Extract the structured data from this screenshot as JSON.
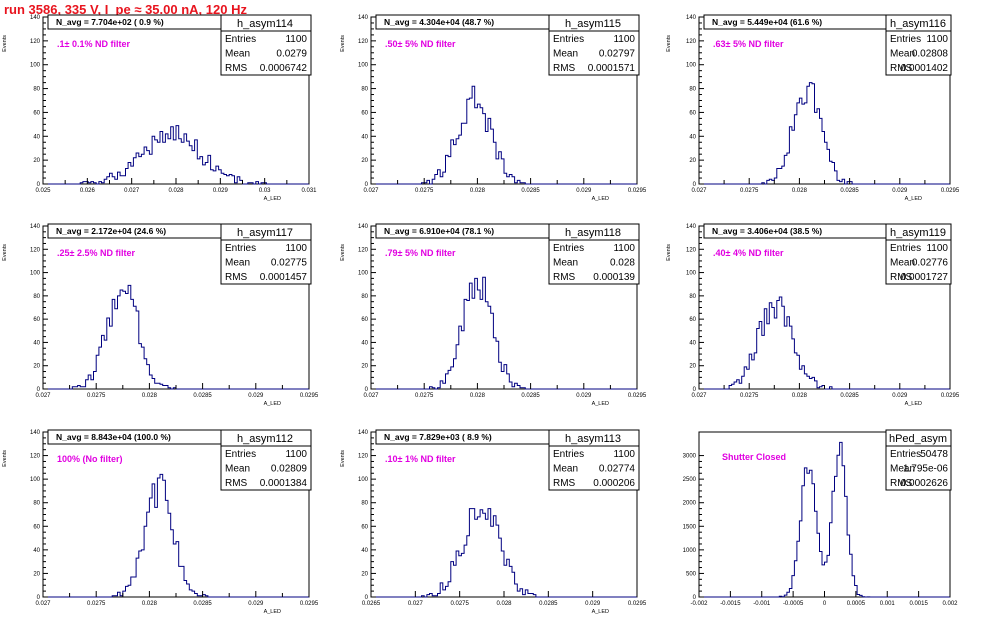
{
  "header": {
    "title": "run 3586,   335 V, I_pe ≈ 35.00 nA, 120 Hz"
  },
  "colors": {
    "hist": "#000080",
    "label": "#e100e1",
    "title": "#e8141e",
    "frame": "#000000"
  },
  "chart_data": [
    {
      "type": "bar",
      "title": "h_asym114",
      "xlabel": "A_LED",
      "ylabel": "Events",
      "xlim": [
        0.025,
        0.031
      ],
      "ylim": [
        0,
        140
      ],
      "xticks": [
        0.025,
        0.0255,
        0.026,
        0.0265,
        0.027,
        0.0275,
        0.028,
        0.0285,
        0.029,
        0.0295,
        0.03,
        0.0305,
        0.031
      ],
      "xtick_labels": [
        "0.025",
        "",
        "0.026",
        "",
        "0.027",
        "",
        "0.028",
        "",
        "0.029",
        "",
        "0.03",
        "",
        "0.031"
      ],
      "yticks": [
        0,
        20,
        40,
        60,
        80,
        100,
        120,
        140
      ],
      "navg": "N_avg = 7.704e+02 ( 0.9 %)",
      "label": ".1± 0.1% ND filter",
      "stats": {
        "Entries": "1100",
        "Mean": "0.0279",
        "RMS": "0.0006742"
      },
      "gauss": {
        "mean": 0.0279,
        "rms": 0.0006742,
        "peak": 42,
        "nbins": 100,
        "seed": 114
      }
    },
    {
      "type": "bar",
      "title": "h_asym115",
      "xlabel": "A_LED",
      "ylabel": "Events",
      "xlim": [
        0.027,
        0.0295
      ],
      "ylim": [
        0,
        140
      ],
      "xticks": [
        0.027,
        0.02725,
        0.0275,
        0.02775,
        0.028,
        0.02825,
        0.0285,
        0.02875,
        0.029,
        0.02925,
        0.0295
      ],
      "xtick_labels": [
        "0.027",
        "",
        "0.0275",
        "",
        "0.028",
        "",
        "0.0285",
        "",
        "0.029",
        "",
        "0.0295"
      ],
      "yticks": [
        0,
        20,
        40,
        60,
        80,
        100,
        120,
        140
      ],
      "navg": "N_avg = 4.304e+04 (48.7 %)",
      "label": ".50± 5% ND filter",
      "stats": {
        "Entries": "1100",
        "Mean": "0.02797",
        "RMS": "0.0001571"
      },
      "gauss": {
        "mean": 0.02797,
        "rms": 0.0001571,
        "peak": 70,
        "nbins": 100,
        "seed": 115
      }
    },
    {
      "type": "bar",
      "title": "h_asym116",
      "xlabel": "A_LED",
      "ylabel": "Events",
      "xlim": [
        0.027,
        0.0295
      ],
      "ylim": [
        0,
        140
      ],
      "xticks": [
        0.027,
        0.02725,
        0.0275,
        0.02775,
        0.028,
        0.02825,
        0.0285,
        0.02875,
        0.029,
        0.02925,
        0.0295
      ],
      "xtick_labels": [
        "0.027",
        "",
        "0.0275",
        "",
        "0.028",
        "",
        "0.0285",
        "",
        "0.029",
        "",
        "0.0295"
      ],
      "yticks": [
        0,
        20,
        40,
        60,
        80,
        100,
        120,
        140
      ],
      "navg": "N_avg = 5.449e+04 (61.6 %)",
      "label": ".63± 5% ND filter",
      "stats": {
        "Entries": "1100",
        "Mean": "0.02808",
        "RMS": "0.0001402"
      },
      "gauss": {
        "mean": 0.02808,
        "rms": 0.0001402,
        "peak": 82,
        "nbins": 100,
        "seed": 116
      }
    },
    {
      "type": "bar",
      "title": "h_asym117",
      "xlabel": "A_LED",
      "ylabel": "Events",
      "xlim": [
        0.027,
        0.0295
      ],
      "ylim": [
        0,
        140
      ],
      "xticks": [
        0.027,
        0.02725,
        0.0275,
        0.02775,
        0.028,
        0.02825,
        0.0285,
        0.02875,
        0.029,
        0.02925,
        0.0295
      ],
      "xtick_labels": [
        "0.027",
        "",
        "0.0275",
        "",
        "0.028",
        "",
        "0.0285",
        "",
        "0.029",
        "",
        "0.0295"
      ],
      "yticks": [
        0,
        20,
        40,
        60,
        80,
        100,
        120,
        140
      ],
      "navg": "N_avg = 2.172e+04 (24.6 %)",
      "label": ".25± 2.5% ND filter",
      "stats": {
        "Entries": "1100",
        "Mean": "0.02775",
        "RMS": "0.0001457"
      },
      "gauss": {
        "mean": 0.02775,
        "rms": 0.0001457,
        "peak": 88,
        "nbins": 100,
        "seed": 117
      }
    },
    {
      "type": "bar",
      "title": "h_asym118",
      "xlabel": "A_LED",
      "ylabel": "Events",
      "xlim": [
        0.027,
        0.0295
      ],
      "ylim": [
        0,
        140
      ],
      "xticks": [
        0.027,
        0.02725,
        0.0275,
        0.02775,
        0.028,
        0.02825,
        0.0285,
        0.02875,
        0.029,
        0.02925,
        0.0295
      ],
      "xtick_labels": [
        "0.027",
        "",
        "0.0275",
        "",
        "0.028",
        "",
        "0.0285",
        "",
        "0.029",
        "",
        "0.0295"
      ],
      "yticks": [
        0,
        20,
        40,
        60,
        80,
        100,
        120,
        140
      ],
      "navg": "N_avg = 6.910e+04 (78.1 %)",
      "label": ".79± 5% ND filter",
      "stats": {
        "Entries": "1100",
        "Mean": "0.028",
        "RMS": "0.000139"
      },
      "gauss": {
        "mean": 0.028,
        "rms": 0.000139,
        "peak": 92,
        "nbins": 100,
        "seed": 118
      }
    },
    {
      "type": "bar",
      "title": "h_asym119",
      "xlabel": "A_LED",
      "ylabel": "Events",
      "xlim": [
        0.027,
        0.0295
      ],
      "ylim": [
        0,
        140
      ],
      "xticks": [
        0.027,
        0.02725,
        0.0275,
        0.02775,
        0.028,
        0.02825,
        0.0285,
        0.02875,
        0.029,
        0.02925,
        0.0295
      ],
      "xtick_labels": [
        "0.027",
        "",
        "0.0275",
        "",
        "0.028",
        "",
        "0.0285",
        "",
        "0.029",
        "",
        "0.0295"
      ],
      "yticks": [
        0,
        20,
        40,
        60,
        80,
        100,
        120,
        140
      ],
      "navg": "N_avg = 3.406e+04 (38.5 %)",
      "label": ".40± 4% ND filter",
      "stats": {
        "Entries": "1100",
        "Mean": "0.02776",
        "RMS": "0.0001727"
      },
      "gauss": {
        "mean": 0.02776,
        "rms": 0.0001727,
        "peak": 70,
        "nbins": 100,
        "seed": 119
      }
    },
    {
      "type": "bar",
      "title": "h_asym112",
      "xlabel": "A_LED",
      "ylabel": "Events",
      "xlim": [
        0.027,
        0.0295
      ],
      "ylim": [
        0,
        140
      ],
      "xticks": [
        0.027,
        0.02725,
        0.0275,
        0.02775,
        0.028,
        0.02825,
        0.0285,
        0.02875,
        0.029,
        0.02925,
        0.0295
      ],
      "xtick_labels": [
        "0.027",
        "",
        "0.0275",
        "",
        "0.028",
        "",
        "0.0285",
        "",
        "0.029",
        "",
        "0.0295"
      ],
      "yticks": [
        0,
        20,
        40,
        60,
        80,
        100,
        120,
        140
      ],
      "navg": "N_avg = 8.843e+04 (100.0 %)",
      "label": "100% (No filter)",
      "stats": {
        "Entries": "1100",
        "Mean": "0.02809",
        "RMS": "0.0001384"
      },
      "gauss": {
        "mean": 0.02809,
        "rms": 0.0001384,
        "peak": 92,
        "nbins": 100,
        "seed": 112
      }
    },
    {
      "type": "bar",
      "title": "h_asym113",
      "xlabel": "A_LED",
      "ylabel": "Events",
      "xlim": [
        0.0265,
        0.0295
      ],
      "ylim": [
        0,
        140
      ],
      "xticks": [
        0.0265,
        0.027,
        0.0275,
        0.028,
        0.0285,
        0.029,
        0.0295
      ],
      "xtick_labels": [
        "0.0265",
        "0.027",
        "0.0275",
        "0.028",
        "0.0285",
        "0.029",
        "0.0295"
      ],
      "yticks": [
        0,
        20,
        40,
        60,
        80,
        100,
        120,
        140
      ],
      "navg": "N_avg = 7.829e+03 ( 8.9 %)",
      "label": ".10± 1% ND filter",
      "stats": {
        "Entries": "1100",
        "Mean": "0.02774",
        "RMS": "0.000206"
      },
      "gauss": {
        "mean": 0.02774,
        "rms": 0.000206,
        "peak": 78,
        "nbins": 100,
        "seed": 113
      }
    },
    {
      "type": "bar",
      "title": "hPed_asym",
      "xlabel": "",
      "ylabel": "",
      "xlim": [
        -0.002,
        0.002
      ],
      "ylim": [
        0,
        3500
      ],
      "xticks": [
        -0.002,
        -0.0015,
        -0.001,
        -0.0005,
        0,
        0.0005,
        0.001,
        0.0015,
        0.002
      ],
      "xtick_labels": [
        "-0.002",
        "-0.0015",
        "-0.001",
        "-0.0005",
        "0",
        "0.0005",
        "0.001",
        "0.0015",
        "0.002"
      ],
      "yticks": [
        0,
        500,
        1000,
        1500,
        2000,
        2500,
        3000
      ],
      "navg": "",
      "label": "Shutter Closed",
      "stats": {
        "Entries": "50478",
        "Mean": "1.795e-06",
        "RMS": "0.0002626"
      },
      "bimodal": {
        "peaks": [
          [
            -0.00025,
            0.00013,
            2800
          ],
          [
            0.00024,
            0.00011,
            3150
          ]
        ],
        "nbins": 100,
        "seed": 120
      }
    }
  ]
}
